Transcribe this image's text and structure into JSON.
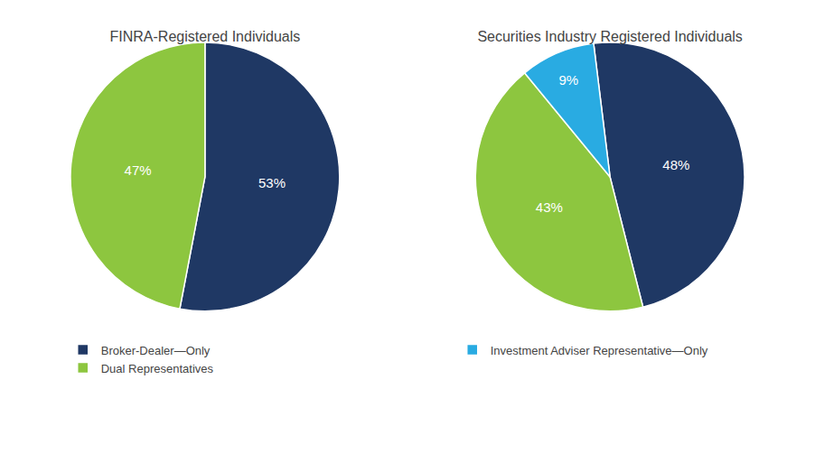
{
  "chart_data": [
    {
      "type": "pie",
      "title": "FINRA-Registered Individuals",
      "categories": [
        "Broker-Dealer—Only",
        "Dual Representatives"
      ],
      "values": [
        53,
        47
      ],
      "value_labels": [
        "53%",
        "47%"
      ],
      "colors": [
        "#1F3864",
        "#8DC63F"
      ],
      "data_labels": true,
      "legend": "bottom"
    },
    {
      "type": "pie",
      "title": "Securities Industry Registered Individuals",
      "categories": [
        "Broker-Dealer—Only",
        "Dual Representatives",
        "Investment Adviser Representative—Only"
      ],
      "values": [
        48,
        43,
        9
      ],
      "value_labels": [
        "48%",
        "43%",
        "9%"
      ],
      "colors": [
        "#1F3864",
        "#8DC63F",
        "#29ABE2"
      ],
      "data_labels": true,
      "legend": "bottom"
    }
  ]
}
